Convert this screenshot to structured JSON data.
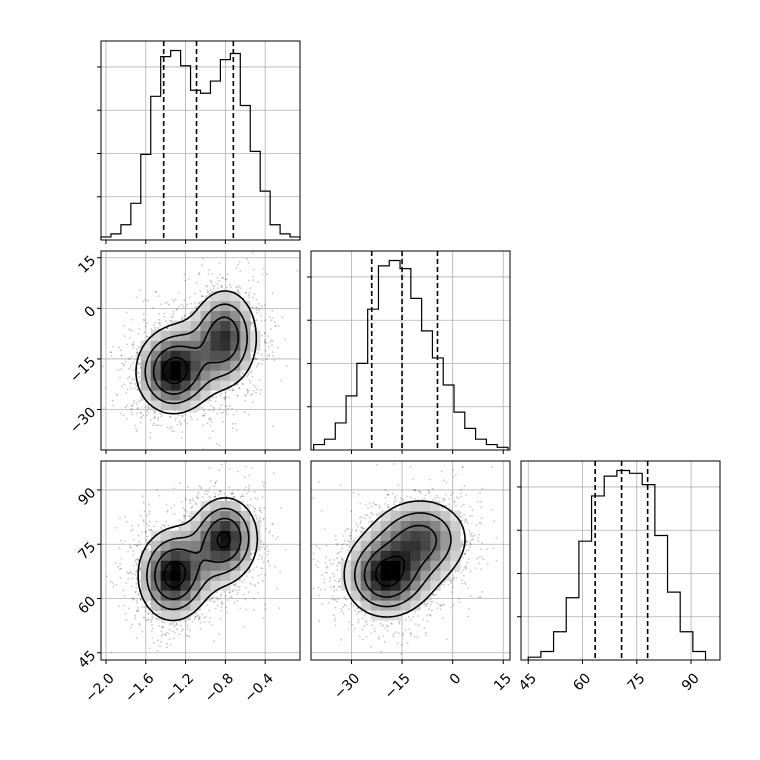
{
  "chart_data": {
    "type": "corner",
    "title": "",
    "parameters": [
      "",
      "",
      ""
    ],
    "ranges": [
      [
        -2.05,
        -0.05
      ],
      [
        -42,
        17
      ],
      [
        43,
        98
      ]
    ],
    "ticks": [
      [
        -2.0,
        -1.6,
        -1.2,
        -0.8,
        -0.4
      ],
      [
        -30,
        -15,
        0,
        15
      ],
      [
        45,
        60,
        75,
        90
      ]
    ],
    "tick_labels": [
      [
        "−2.0",
        "−1.6",
        "−1.2",
        "−0.8",
        "−0.4"
      ],
      [
        "−30",
        "−15",
        "0",
        "15"
      ],
      [
        "45",
        "60",
        "75",
        "90"
      ]
    ],
    "grid": true,
    "histograms": [
      {
        "param": 0,
        "bin_edges": [
          -2.05,
          -1.95,
          -1.85,
          -1.75,
          -1.65,
          -1.55,
          -1.45,
          -1.35,
          -1.25,
          -1.15,
          -1.05,
          -0.95,
          -0.85,
          -0.75,
          -0.65,
          -0.55,
          -0.45,
          -0.35,
          -0.25,
          -0.15,
          -0.05
        ],
        "counts": [
          1,
          2,
          5,
          12,
          28,
          47,
          60,
          62,
          57,
          49,
          48,
          52,
          59,
          61,
          44,
          29,
          16,
          5,
          2,
          1
        ],
        "quantiles": [
          -1.42,
          -1.09,
          -0.72
        ]
      },
      {
        "param": 1,
        "bin_edges": [
          -41.2,
          -38.0,
          -34.8,
          -31.6,
          -28.4,
          -25.2,
          -22.0,
          -18.8,
          -15.6,
          -12.4,
          -9.2,
          -6.0,
          -2.8,
          0.4,
          3.6,
          6.8,
          10.0,
          13.2,
          16.4
        ],
        "counts": [
          2,
          4,
          10,
          20,
          32,
          52,
          68,
          70,
          67,
          56,
          44,
          34,
          24,
          14,
          8,
          4,
          2,
          1
        ],
        "quantiles": [
          -24.0,
          -15.0,
          -4.5
        ]
      },
      {
        "param": 2,
        "bin_edges": [
          45,
          48.5,
          52,
          55.5,
          59,
          62.5,
          66,
          69.5,
          73,
          76.5,
          80,
          83.5,
          87,
          90.5,
          94
        ],
        "counts": [
          1,
          3,
          10,
          22,
          42,
          58,
          65,
          67,
          66,
          62,
          44,
          24,
          10,
          3
        ],
        "quantiles": [
          63.5,
          70.8,
          78.0
        ]
      }
    ],
    "density_panels": [
      {
        "x_param": 0,
        "y_param": 1,
        "modes": [
          {
            "x": -1.33,
            "y": -19,
            "sx": 0.18,
            "sy": 6,
            "w": 1.0
          },
          {
            "x": -0.8,
            "y": -8,
            "sx": 0.16,
            "sy": 7,
            "w": 0.75
          },
          {
            "x": -1.05,
            "y": -14,
            "sx": 0.25,
            "sy": 7,
            "w": 0.3
          }
        ],
        "contour_levels": [
          0.12,
          0.3,
          0.55,
          0.85
        ]
      },
      {
        "x_param": 0,
        "y_param": 2,
        "modes": [
          {
            "x": -1.33,
            "y": 66,
            "sx": 0.17,
            "sy": 6,
            "w": 1.0
          },
          {
            "x": -0.8,
            "y": 77,
            "sx": 0.16,
            "sy": 5.5,
            "w": 0.9
          },
          {
            "x": -1.05,
            "y": 71,
            "sx": 0.25,
            "sy": 6,
            "w": 0.3
          }
        ],
        "contour_levels": [
          0.12,
          0.3,
          0.55,
          0.85
        ]
      },
      {
        "x_param": 1,
        "y_param": 2,
        "modes": [
          {
            "x": -20,
            "y": 66,
            "sx": 6,
            "sy": 5.5,
            "w": 1.0
          },
          {
            "x": -9,
            "y": 77,
            "sx": 7,
            "sy": 5.5,
            "w": 0.65
          },
          {
            "x": -14,
            "y": 71,
            "sx": 8,
            "sy": 7,
            "w": 0.35
          }
        ],
        "contour_levels": [
          0.12,
          0.3,
          0.55,
          0.85
        ]
      }
    ]
  }
}
